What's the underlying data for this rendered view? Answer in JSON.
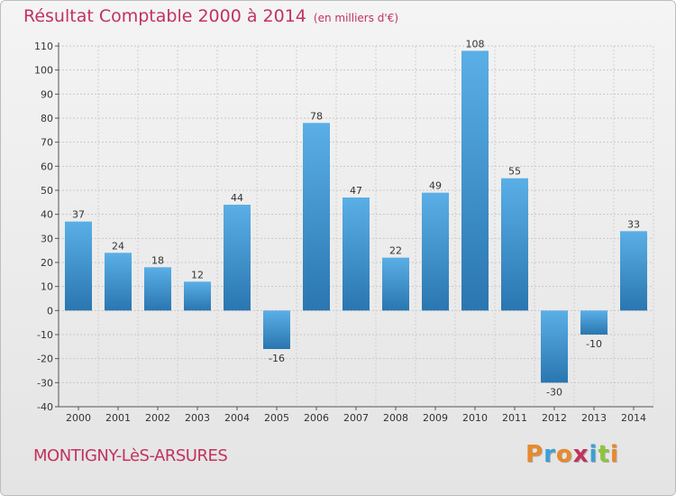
{
  "header": {
    "title": "Résultat Comptable 2000 à 2014",
    "unit": "(en milliers d'€)"
  },
  "footer": {
    "commune": "MONTIGNY-LèS-ARSURES",
    "logo": "Proxiti",
    "logo_colors": [
      "#e8892b",
      "#3aa0d8",
      "#e8892b",
      "#c2325f",
      "#3aa0d8",
      "#8bc53f",
      "#e8892b"
    ]
  },
  "chart_data": {
    "type": "bar",
    "title": "Résultat Comptable 2000 à 2014",
    "subtitle": "(en milliers d'€)",
    "categories": [
      "2000",
      "2001",
      "2002",
      "2003",
      "2004",
      "2005",
      "2006",
      "2007",
      "2008",
      "2009",
      "2010",
      "2011",
      "2012",
      "2013",
      "2014"
    ],
    "values": [
      37,
      24,
      18,
      12,
      44,
      -16,
      78,
      47,
      22,
      49,
      108,
      55,
      -30,
      -10,
      33
    ],
    "ylim": [
      -40,
      110
    ],
    "yticks": [
      110,
      100,
      90,
      80,
      70,
      60,
      50,
      40,
      30,
      20,
      10,
      0,
      -10,
      -20,
      -30,
      -40
    ],
    "grid": "horizontal dashed",
    "bar_color_light": "#5aafe6",
    "bar_color_dark": "#2a76b0",
    "label_color": "#333333"
  }
}
